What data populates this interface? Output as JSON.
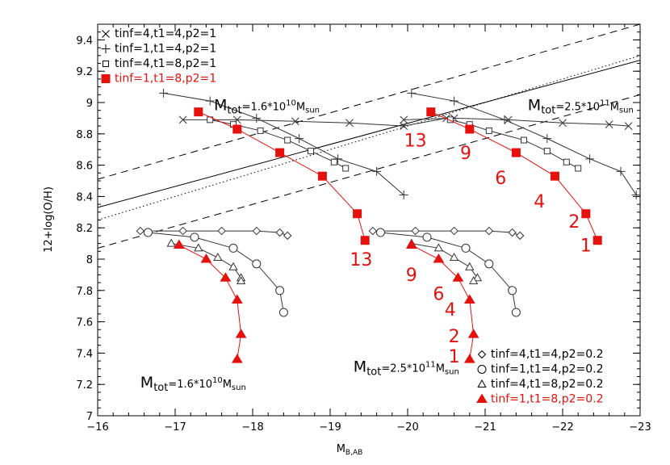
{
  "chart_data": {
    "type": "line",
    "xlabel": "M",
    "xlabel_sub": "B,AB",
    "ylabel": "12+log(O/H)",
    "xlim": [
      -16,
      -23
    ],
    "ylim": [
      7,
      9.5
    ],
    "x_ticks": [
      -16,
      -17,
      -18,
      -19,
      -20,
      -21,
      -22,
      -23
    ],
    "y_ticks": [
      7,
      7.2,
      7.4,
      7.6,
      7.8,
      8,
      8.2,
      8.4,
      8.6,
      8.8,
      9,
      9.2,
      9.4
    ],
    "highlight_color": "#e4110d",
    "line_color": "#333333",
    "annotations": [
      {
        "text": "M",
        "sub": "tot",
        "value": "=1.6*10",
        "sup": "10",
        "unit": "M",
        "unit_sub": "sun",
        "x": -17.5,
        "y": 8.95
      },
      {
        "text": "M",
        "sub": "tot",
        "value": "=2.5*10",
        "sup": "11",
        "unit": "M",
        "unit_sub": "sun",
        "x": -21.55,
        "y": 8.95
      },
      {
        "text": "M",
        "sub": "tot",
        "value": "=1.6*10",
        "sup": "10",
        "unit": "M",
        "unit_sub": "sun",
        "x": -16.55,
        "y": 7.18
      },
      {
        "text": "M",
        "sub": "tot",
        "value": "=2.5*10",
        "sup": "11",
        "unit": "M",
        "unit_sub": "sun",
        "x": -19.3,
        "y": 7.28
      }
    ],
    "time_labels": [
      {
        "text": "13",
        "x": -20.1,
        "y": 8.72
      },
      {
        "text": "9",
        "x": -20.75,
        "y": 8.64
      },
      {
        "text": "6",
        "x": -21.2,
        "y": 8.48
      },
      {
        "text": "4",
        "x": -21.7,
        "y": 8.33
      },
      {
        "text": "2",
        "x": -22.15,
        "y": 8.2
      },
      {
        "text": "1",
        "x": -22.3,
        "y": 8.05
      },
      {
        "text": "13",
        "x": -19.4,
        "y": 7.96
      },
      {
        "text": "9",
        "x": -20.05,
        "y": 7.86
      },
      {
        "text": "6",
        "x": -20.4,
        "y": 7.74
      },
      {
        "text": "4",
        "x": -20.55,
        "y": 7.64
      },
      {
        "text": "2",
        "x": -20.6,
        "y": 7.47
      },
      {
        "text": "1",
        "x": -20.6,
        "y": 7.34
      }
    ],
    "reference_lines": [
      {
        "name": "solid",
        "style": "solid",
        "points": [
          [
            -16,
            8.33
          ],
          [
            -23,
            9.27
          ]
        ]
      },
      {
        "name": "dashed-upper",
        "style": "dashed",
        "points": [
          [
            -16,
            8.51
          ],
          [
            -23,
            9.5
          ]
        ]
      },
      {
        "name": "dashed-lower",
        "style": "dashed",
        "points": [
          [
            -16,
            8.07
          ],
          [
            -23,
            9.05
          ]
        ]
      },
      {
        "name": "dotted",
        "style": "dotted",
        "points": [
          [
            -16,
            8.25
          ],
          [
            -23,
            9.3
          ]
        ]
      }
    ],
    "series": [
      {
        "name": "tinf=4,t1=4,p2=1",
        "marker": "cross",
        "color": "#333333",
        "points": [
          [
            -17.1,
            8.89
          ],
          [
            -17.8,
            8.89
          ],
          [
            -18.55,
            8.88
          ],
          [
            -19.25,
            8.87
          ],
          [
            -19.95,
            8.85
          ],
          [
            -20.5,
            8.9
          ]
        ]
      },
      {
        "name": "tinf=4,t1=4,p2=1",
        "marker": "cross",
        "color": "#333333",
        "points": [
          [
            -19.95,
            8.89
          ],
          [
            -20.6,
            8.9
          ],
          [
            -21.3,
            8.89
          ],
          [
            -22.0,
            8.87
          ],
          [
            -22.6,
            8.86
          ],
          [
            -22.85,
            8.85
          ]
        ]
      },
      {
        "name": "tinf=1,t1=4,p2=1",
        "marker": "plus",
        "color": "#333333",
        "points": [
          [
            -16.85,
            9.06
          ],
          [
            -17.45,
            9.01
          ],
          [
            -18.05,
            8.9
          ],
          [
            -18.6,
            8.77
          ],
          [
            -19.1,
            8.64
          ],
          [
            -19.6,
            8.56
          ],
          [
            -19.95,
            8.41
          ]
        ]
      },
      {
        "name": "tinf=1,t1=4,p2=1",
        "marker": "plus",
        "color": "#333333",
        "points": [
          [
            -20.05,
            9.06
          ],
          [
            -20.6,
            9.01
          ],
          [
            -21.25,
            8.89
          ],
          [
            -21.8,
            8.77
          ],
          [
            -22.35,
            8.64
          ],
          [
            -22.75,
            8.56
          ],
          [
            -22.95,
            8.41
          ]
        ]
      },
      {
        "name": "tinf=4,t1=8,p2=1",
        "marker": "square",
        "color": "#333333",
        "points": [
          [
            -17.45,
            8.89
          ],
          [
            -17.75,
            8.86
          ],
          [
            -18.1,
            8.82
          ],
          [
            -18.45,
            8.76
          ],
          [
            -18.75,
            8.69
          ],
          [
            -19.05,
            8.62
          ],
          [
            -19.2,
            8.58
          ]
        ]
      },
      {
        "name": "tinf=4,t1=8,p2=1",
        "marker": "square",
        "color": "#333333",
        "points": [
          [
            -20.55,
            8.89
          ],
          [
            -20.8,
            8.86
          ],
          [
            -21.05,
            8.82
          ],
          [
            -21.5,
            8.76
          ],
          [
            -21.8,
            8.69
          ],
          [
            -22.05,
            8.62
          ],
          [
            -22.2,
            8.58
          ]
        ]
      },
      {
        "name": "tinf=1,t1=8,p2=1",
        "marker": "filled-square",
        "color": "#e4110d",
        "points": [
          [
            -17.3,
            8.94
          ],
          [
            -17.8,
            8.83
          ],
          [
            -18.35,
            8.68
          ],
          [
            -18.9,
            8.53
          ],
          [
            -19.35,
            8.29
          ],
          [
            -19.45,
            8.12
          ]
        ]
      },
      {
        "name": "tinf=1,t1=8,p2=1",
        "marker": "filled-square",
        "color": "#e4110d",
        "points": [
          [
            -20.3,
            8.94
          ],
          [
            -20.8,
            8.83
          ],
          [
            -21.4,
            8.68
          ],
          [
            -21.9,
            8.53
          ],
          [
            -22.3,
            8.29
          ],
          [
            -22.45,
            8.12
          ]
        ]
      },
      {
        "name": "tinf=4,t1=4,p2=0.2",
        "marker": "diamond",
        "color": "#333333",
        "points": [
          [
            -16.55,
            8.18
          ],
          [
            -17.1,
            8.18
          ],
          [
            -17.6,
            8.18
          ],
          [
            -18.05,
            8.18
          ],
          [
            -18.35,
            8.17
          ],
          [
            -18.45,
            8.15
          ]
        ]
      },
      {
        "name": "tinf=4,t1=4,p2=0.2",
        "marker": "diamond",
        "color": "#333333",
        "points": [
          [
            -19.55,
            8.18
          ],
          [
            -20.1,
            8.18
          ],
          [
            -20.6,
            8.18
          ],
          [
            -21.05,
            8.18
          ],
          [
            -21.35,
            8.17
          ],
          [
            -21.45,
            8.15
          ]
        ]
      },
      {
        "name": "tinf=1,t1=4,p2=0.2",
        "marker": "circle",
        "color": "#333333",
        "points": [
          [
            -16.65,
            8.17
          ],
          [
            -17.25,
            8.14
          ],
          [
            -17.75,
            8.07
          ],
          [
            -18.05,
            7.97
          ],
          [
            -18.35,
            7.8
          ],
          [
            -18.4,
            7.66
          ]
        ]
      },
      {
        "name": "tinf=1,t1=4,p2=0.2",
        "marker": "circle",
        "color": "#333333",
        "points": [
          [
            -19.65,
            8.17
          ],
          [
            -20.25,
            8.14
          ],
          [
            -20.75,
            8.07
          ],
          [
            -21.05,
            7.97
          ],
          [
            -21.35,
            7.8
          ],
          [
            -21.4,
            7.66
          ]
        ]
      },
      {
        "name": "tinf=4,t1=8,p2=0.2",
        "marker": "triangle",
        "color": "#333333",
        "points": [
          [
            -16.95,
            8.1
          ],
          [
            -17.3,
            8.07
          ],
          [
            -17.55,
            8.01
          ],
          [
            -17.75,
            7.95
          ],
          [
            -17.85,
            7.88
          ],
          [
            -17.85,
            7.86
          ]
        ]
      },
      {
        "name": "tinf=4,t1=8,p2=0.2",
        "marker": "triangle",
        "color": "#333333",
        "points": [
          [
            -20.05,
            8.1
          ],
          [
            -20.4,
            8.07
          ],
          [
            -20.6,
            8.01
          ],
          [
            -20.8,
            7.95
          ],
          [
            -20.9,
            7.88
          ],
          [
            -20.85,
            7.86
          ]
        ]
      },
      {
        "name": "tinf=1,t1=8,p2=0.2",
        "marker": "filled-triangle",
        "color": "#e4110d",
        "points": [
          [
            -17.05,
            8.09
          ],
          [
            -17.4,
            8.0
          ],
          [
            -17.65,
            7.88
          ],
          [
            -17.8,
            7.74
          ],
          [
            -17.85,
            7.52
          ],
          [
            -17.8,
            7.36
          ]
        ]
      },
      {
        "name": "tinf=1,t1=8,p2=0.2",
        "marker": "filled-triangle",
        "color": "#e4110d",
        "points": [
          [
            -20.05,
            8.09
          ],
          [
            -20.4,
            8.0
          ],
          [
            -20.65,
            7.88
          ],
          [
            -20.8,
            7.74
          ],
          [
            -20.85,
            7.52
          ],
          [
            -20.8,
            7.36
          ]
        ]
      }
    ],
    "legend_top": [
      {
        "label": "tinf=4,t1=4,p2=1",
        "marker": "cross",
        "color": "#000000"
      },
      {
        "label": "tinf=1,t1=4,p2=1",
        "marker": "plus",
        "color": "#000000"
      },
      {
        "label": "tinf=4,t1=8,p2=1",
        "marker": "square",
        "color": "#000000"
      },
      {
        "label": "tinf=1,t1=8,p2=1",
        "marker": "filled-square",
        "color": "#e4110d"
      }
    ],
    "legend_bottom": [
      {
        "label": "tinf=4,t1=4,p2=0.2",
        "marker": "diamond",
        "color": "#000000"
      },
      {
        "label": "tinf=1,t1=4,p2=0.2",
        "marker": "circle",
        "color": "#000000"
      },
      {
        "label": "tinf=4,t1=8,p2=0.2",
        "marker": "triangle",
        "color": "#000000"
      },
      {
        "label": "tinf=1,t1=8,p2=0.2",
        "marker": "filled-triangle",
        "color": "#e4110d"
      }
    ],
    "legend_top_position": "top-left",
    "legend_bottom_position": "bottom-right"
  }
}
